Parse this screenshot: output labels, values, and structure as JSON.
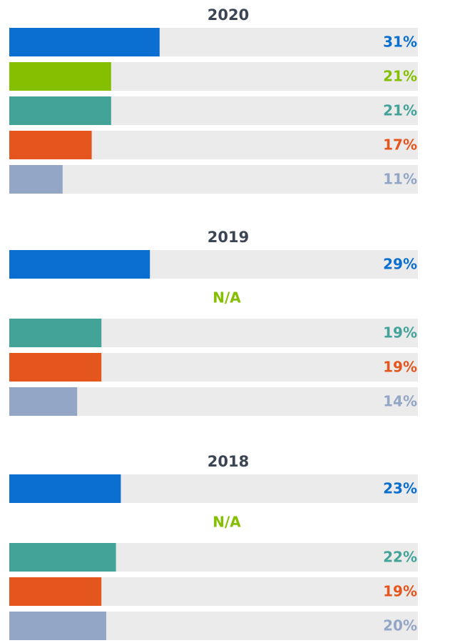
{
  "chart_data": [
    {
      "type": "bar",
      "title": "2020",
      "values": [
        31,
        21,
        21,
        17,
        11
      ],
      "value_labels": [
        "31%",
        "21%",
        "21%",
        "17%",
        "11%"
      ],
      "colors": [
        "#0a6fd1",
        "#84bf00",
        "#44a399",
        "#e5561f",
        "#94a6c6"
      ]
    },
    {
      "type": "bar",
      "title": "2019",
      "values": [
        29,
        null,
        19,
        19,
        14
      ],
      "value_labels": [
        "29%",
        "N/A",
        "19%",
        "19%",
        "14%"
      ],
      "colors": [
        "#0a6fd1",
        "#84bf00",
        "#44a399",
        "#e5561f",
        "#94a6c6"
      ]
    },
    {
      "type": "bar",
      "title": "2018",
      "values": [
        23,
        null,
        22,
        19,
        20
      ],
      "value_labels": [
        "23%",
        "N/A",
        "22%",
        "19%",
        "20%"
      ],
      "colors": [
        "#0a6fd1",
        "#84bf00",
        "#44a399",
        "#e5561f",
        "#94a6c6"
      ]
    }
  ]
}
